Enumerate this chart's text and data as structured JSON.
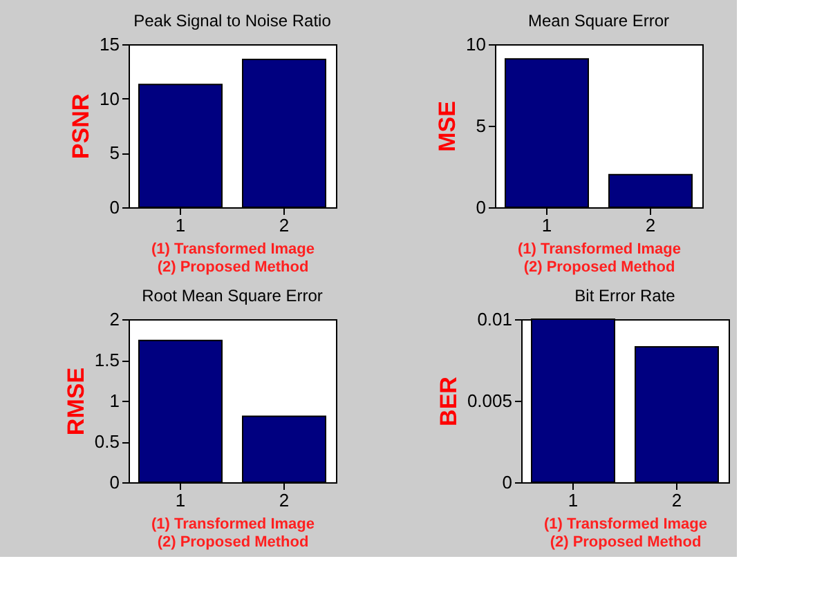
{
  "chart_data": [
    {
      "type": "bar",
      "title": "Peak Signal to Noise Ratio",
      "ylabel": "PSNR",
      "xlabel": "(1) Transformed Image\n(2) Proposed Method",
      "categories": [
        "1",
        "2"
      ],
      "values": [
        11.3,
        13.6
      ],
      "color": "#000080",
      "ylim": [
        0,
        15
      ],
      "yticks": [
        0,
        5,
        10,
        15
      ],
      "grid": false
    },
    {
      "type": "bar",
      "title": "Mean Square Error",
      "ylabel": "MSE",
      "xlabel": "(1) Transformed Image\n(2) Proposed Method",
      "categories": [
        "1",
        "2"
      ],
      "values": [
        9.1,
        2.0
      ],
      "color": "#000080",
      "ylim": [
        0,
        10
      ],
      "yticks": [
        0,
        5,
        10
      ],
      "grid": false
    },
    {
      "type": "bar",
      "title": "Root Mean Square Error",
      "ylabel": "RMSE",
      "xlabel": "(1) Transformed Image\n(2) Proposed Method",
      "categories": [
        "1",
        "2"
      ],
      "values": [
        1.74,
        0.81
      ],
      "color": "#000080",
      "ylim": [
        0,
        2
      ],
      "yticks": [
        0,
        0.5,
        1,
        1.5,
        2
      ],
      "grid": false
    },
    {
      "type": "bar",
      "title": "Bit Error Rate",
      "ylabel": "BER",
      "xlabel": "(1) Transformed Image\n(2) Proposed Method",
      "categories": [
        "1",
        "2"
      ],
      "values": [
        0.01,
        0.0083
      ],
      "color": "#000080",
      "ylim": [
        0,
        0.01
      ],
      "yticks": [
        0,
        0.005,
        0.01
      ],
      "grid": false
    }
  ]
}
